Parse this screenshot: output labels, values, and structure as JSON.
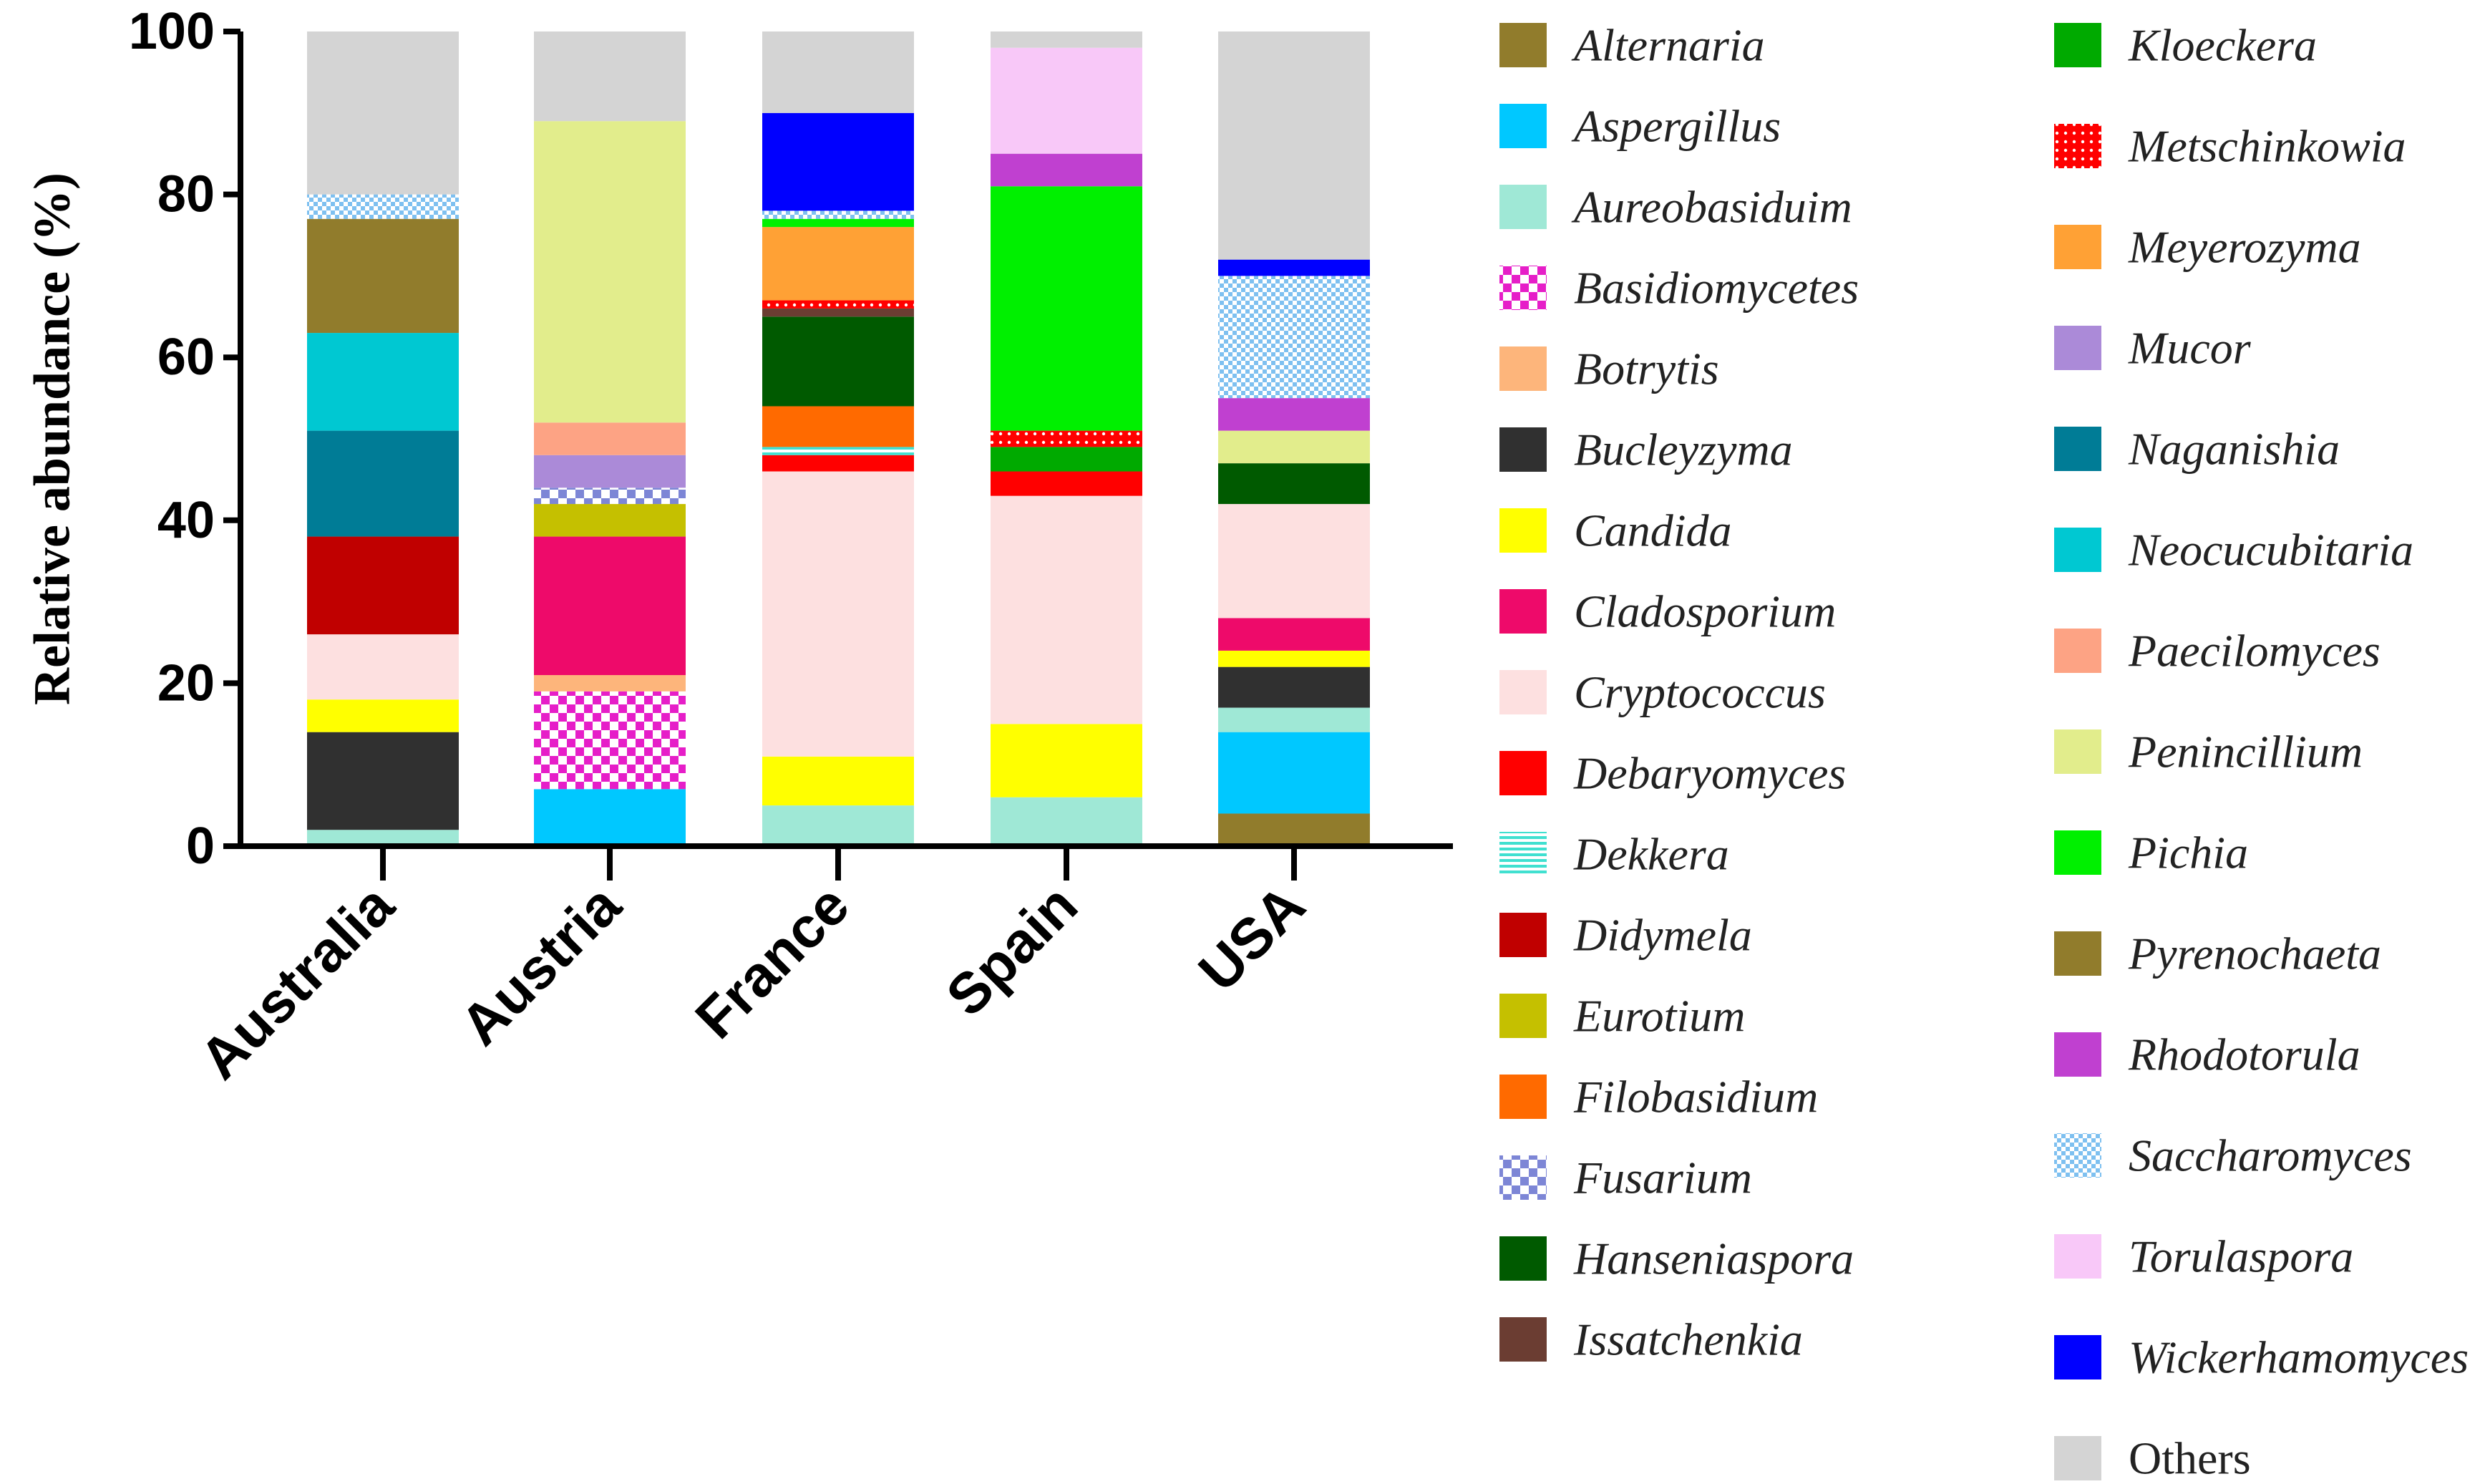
{
  "chart_data": {
    "type": "bar",
    "stacked": true,
    "title": "",
    "xlabel": "",
    "ylabel": "Relative abundance (%)",
    "ylim": [
      0,
      100
    ],
    "yticks": [
      0,
      20,
      40,
      60,
      80,
      100
    ],
    "categories": [
      "Australia",
      "Austria",
      "France",
      "Spain",
      "USA"
    ],
    "legend_columns": [
      [
        "Alternaria",
        "Aspergillus",
        "Aureobasiduim",
        "Basidiomycetes",
        "Botrytis",
        "Bucleyzyma",
        "Candida",
        "Cladosporium",
        "Cryptococcus",
        "Debaryomyces",
        "Dekkera",
        "Didymela",
        "Eurotium",
        "Filobasidium",
        "Fusarium",
        "Hanseniaspora",
        "Issatchenkia"
      ],
      [
        "Kloeckera",
        "Metschinkowia",
        "Meyerozyma",
        "Mucor",
        "Naganishia",
        "Neocucubitaria",
        "Paecilomyces",
        "Penincillium",
        "Pichia",
        "Pyrenochaeta",
        "Rhodotorula",
        "Saccharomyces",
        "Torulaspora",
        "Wickerhamomyces",
        "Others"
      ]
    ],
    "series": [
      {
        "name": "Alternaria",
        "color": "#917c2c",
        "pattern": "solid",
        "values": [
          0,
          0,
          0,
          0,
          4
        ]
      },
      {
        "name": "Aspergillus",
        "color": "#00c8ff",
        "pattern": "solid",
        "values": [
          0,
          7,
          0,
          0,
          10
        ]
      },
      {
        "name": "Aureobasiduim",
        "color": "#9fe8d6",
        "pattern": "solid",
        "values": [
          2,
          0,
          5,
          6,
          3
        ]
      },
      {
        "name": "Basidiomycetes",
        "color": "#e61ec8",
        "pattern": "checker",
        "values": [
          0,
          12,
          0,
          0,
          0
        ]
      },
      {
        "name": "Botrytis",
        "color": "#fdb57b",
        "pattern": "solid",
        "values": [
          0,
          2,
          0,
          0,
          0
        ]
      },
      {
        "name": "Bucleyzyma",
        "color": "#303030",
        "pattern": "solid",
        "values": [
          12,
          0,
          0,
          0,
          5
        ]
      },
      {
        "name": "Candida",
        "color": "#ffff00",
        "pattern": "solid",
        "values": [
          4,
          0,
          6,
          9,
          2
        ]
      },
      {
        "name": "Cladosporium",
        "color": "#ee0a6a",
        "pattern": "solid",
        "values": [
          0,
          17,
          0,
          0,
          4
        ]
      },
      {
        "name": "Cryptococcus",
        "color": "#fde0e0",
        "pattern": "solid",
        "values": [
          8,
          0,
          35,
          28,
          14
        ]
      },
      {
        "name": "Debaryomyces",
        "color": "#ff0000",
        "pattern": "solid",
        "values": [
          0,
          0,
          2,
          3,
          0
        ]
      },
      {
        "name": "Dekkera",
        "color": "#40e0d0",
        "pattern": "hlines",
        "values": [
          0,
          0,
          1,
          0,
          0
        ]
      },
      {
        "name": "Didymela",
        "color": "#c00000",
        "pattern": "solid",
        "values": [
          12,
          0,
          0,
          0,
          0
        ]
      },
      {
        "name": "Eurotium",
        "color": "#c5c000",
        "pattern": "solid",
        "values": [
          0,
          4,
          0,
          0,
          0
        ]
      },
      {
        "name": "Filobasidium",
        "color": "#ff6a00",
        "pattern": "solid",
        "values": [
          0,
          0,
          5,
          0,
          0
        ]
      },
      {
        "name": "Fusarium",
        "color": "#7d86d6",
        "pattern": "checker",
        "values": [
          0,
          2,
          0,
          0,
          0
        ]
      },
      {
        "name": "Hanseniaspora",
        "color": "#005a00",
        "pattern": "solid",
        "values": [
          0,
          0,
          11,
          0,
          5
        ]
      },
      {
        "name": "Issatchenkia",
        "color": "#6b3d32",
        "pattern": "solid",
        "values": [
          0,
          0,
          1,
          0,
          0
        ]
      },
      {
        "name": "Kloeckera",
        "color": "#00aa00",
        "pattern": "solid",
        "values": [
          0,
          0,
          0,
          3,
          0
        ]
      },
      {
        "name": "Metschinkowia",
        "color": "#ff0000",
        "pattern": "dots",
        "values": [
          0,
          0,
          1,
          2,
          0
        ]
      },
      {
        "name": "Meyerozyma",
        "color": "#ffa135",
        "pattern": "solid",
        "values": [
          0,
          0,
          9,
          0,
          0
        ]
      },
      {
        "name": "Mucor",
        "color": "#ab8ad8",
        "pattern": "solid",
        "values": [
          0,
          4,
          0,
          0,
          0
        ]
      },
      {
        "name": "Naganishia",
        "color": "#007c96",
        "pattern": "solid",
        "values": [
          13,
          0,
          0,
          0,
          0
        ]
      },
      {
        "name": "Neocucubitaria",
        "color": "#00c8d2",
        "pattern": "solid",
        "values": [
          12,
          0,
          0,
          0,
          0
        ]
      },
      {
        "name": "Paecilomyces",
        "color": "#fda384",
        "pattern": "solid",
        "values": [
          0,
          4,
          0,
          0,
          0
        ]
      },
      {
        "name": "Penincillium",
        "color": "#e2ed8c",
        "pattern": "solid",
        "values": [
          0,
          37,
          0,
          0,
          4
        ]
      },
      {
        "name": "Pichia",
        "color": "#00f000",
        "pattern": "solid",
        "values": [
          0,
          0,
          1,
          30,
          0
        ]
      },
      {
        "name": "Pyrenochaeta",
        "color": "#917c2c",
        "pattern": "solid",
        "values": [
          14,
          0,
          0,
          0,
          0
        ]
      },
      {
        "name": "Rhodotorula",
        "color": "#c040d0",
        "pattern": "solid",
        "values": [
          0,
          0,
          0,
          4,
          4
        ]
      },
      {
        "name": "Saccharomyces",
        "color": "#7ec0f0",
        "pattern": "sparsedots",
        "values": [
          3,
          0,
          1,
          0,
          15
        ]
      },
      {
        "name": "Torulaspora",
        "color": "#f8c8f8",
        "pattern": "solid",
        "values": [
          0,
          0,
          0,
          13,
          0
        ]
      },
      {
        "name": "Wickerhamomyces",
        "color": "#0000ff",
        "pattern": "solid",
        "values": [
          0,
          0,
          12,
          0,
          2
        ]
      },
      {
        "name": "Others",
        "color": "#d4d4d4",
        "pattern": "solid",
        "values": [
          20,
          11,
          10,
          2,
          28
        ]
      }
    ]
  }
}
